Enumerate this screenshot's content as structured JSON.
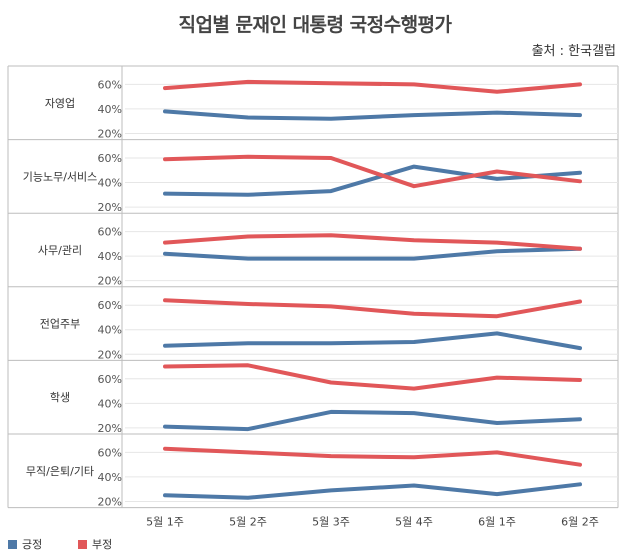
{
  "title": "직업별 문재인 대통령 국정수행평가",
  "source": "출처 : 한국갤럽",
  "colors": {
    "positive": "#4e79a7",
    "negative": "#e15759",
    "grid": "#e6e6e6",
    "border": "#bdbdbd"
  },
  "chart_data": {
    "type": "line",
    "categories": [
      "5월 1주",
      "5월 2주",
      "5월 3주",
      "5월 4주",
      "6월 1주",
      "6월 2주"
    ],
    "legend": [
      "긍정",
      "부정"
    ],
    "legend_position": "bottom-left",
    "ylim": [
      15,
      75
    ],
    "yticks": [
      20,
      40,
      60
    ],
    "ytick_labels": [
      "20%",
      "40%",
      "60%"
    ],
    "panels": [
      {
        "label": "자영업",
        "series": [
          {
            "name": "긍정",
            "values": [
              38,
              33,
              32,
              35,
              37,
              35
            ]
          },
          {
            "name": "부정",
            "values": [
              57,
              62,
              61,
              60,
              54,
              60
            ]
          }
        ]
      },
      {
        "label": "기능노무/서비스",
        "series": [
          {
            "name": "긍정",
            "values": [
              31,
              30,
              33,
              53,
              43,
              48
            ]
          },
          {
            "name": "부정",
            "values": [
              59,
              61,
              60,
              37,
              49,
              41
            ]
          }
        ]
      },
      {
        "label": "사무/관리",
        "series": [
          {
            "name": "긍정",
            "values": [
              42,
              38,
              38,
              38,
              44,
              46
            ]
          },
          {
            "name": "부정",
            "values": [
              51,
              56,
              57,
              53,
              51,
              46
            ]
          }
        ]
      },
      {
        "label": "전업주부",
        "series": [
          {
            "name": "긍정",
            "values": [
              27,
              29,
              29,
              30,
              37,
              25
            ]
          },
          {
            "name": "부정",
            "values": [
              64,
              61,
              59,
              53,
              51,
              63
            ]
          }
        ]
      },
      {
        "label": "학생",
        "series": [
          {
            "name": "긍정",
            "values": [
              21,
              19,
              33,
              32,
              24,
              27
            ]
          },
          {
            "name": "부정",
            "values": [
              70,
              71,
              57,
              52,
              61,
              59
            ]
          }
        ]
      },
      {
        "label": "무직/은퇴/기타",
        "series": [
          {
            "name": "긍정",
            "values": [
              25,
              23,
              29,
              33,
              26,
              34
            ]
          },
          {
            "name": "부정",
            "values": [
              63,
              60,
              57,
              56,
              60,
              50
            ]
          }
        ]
      }
    ]
  }
}
